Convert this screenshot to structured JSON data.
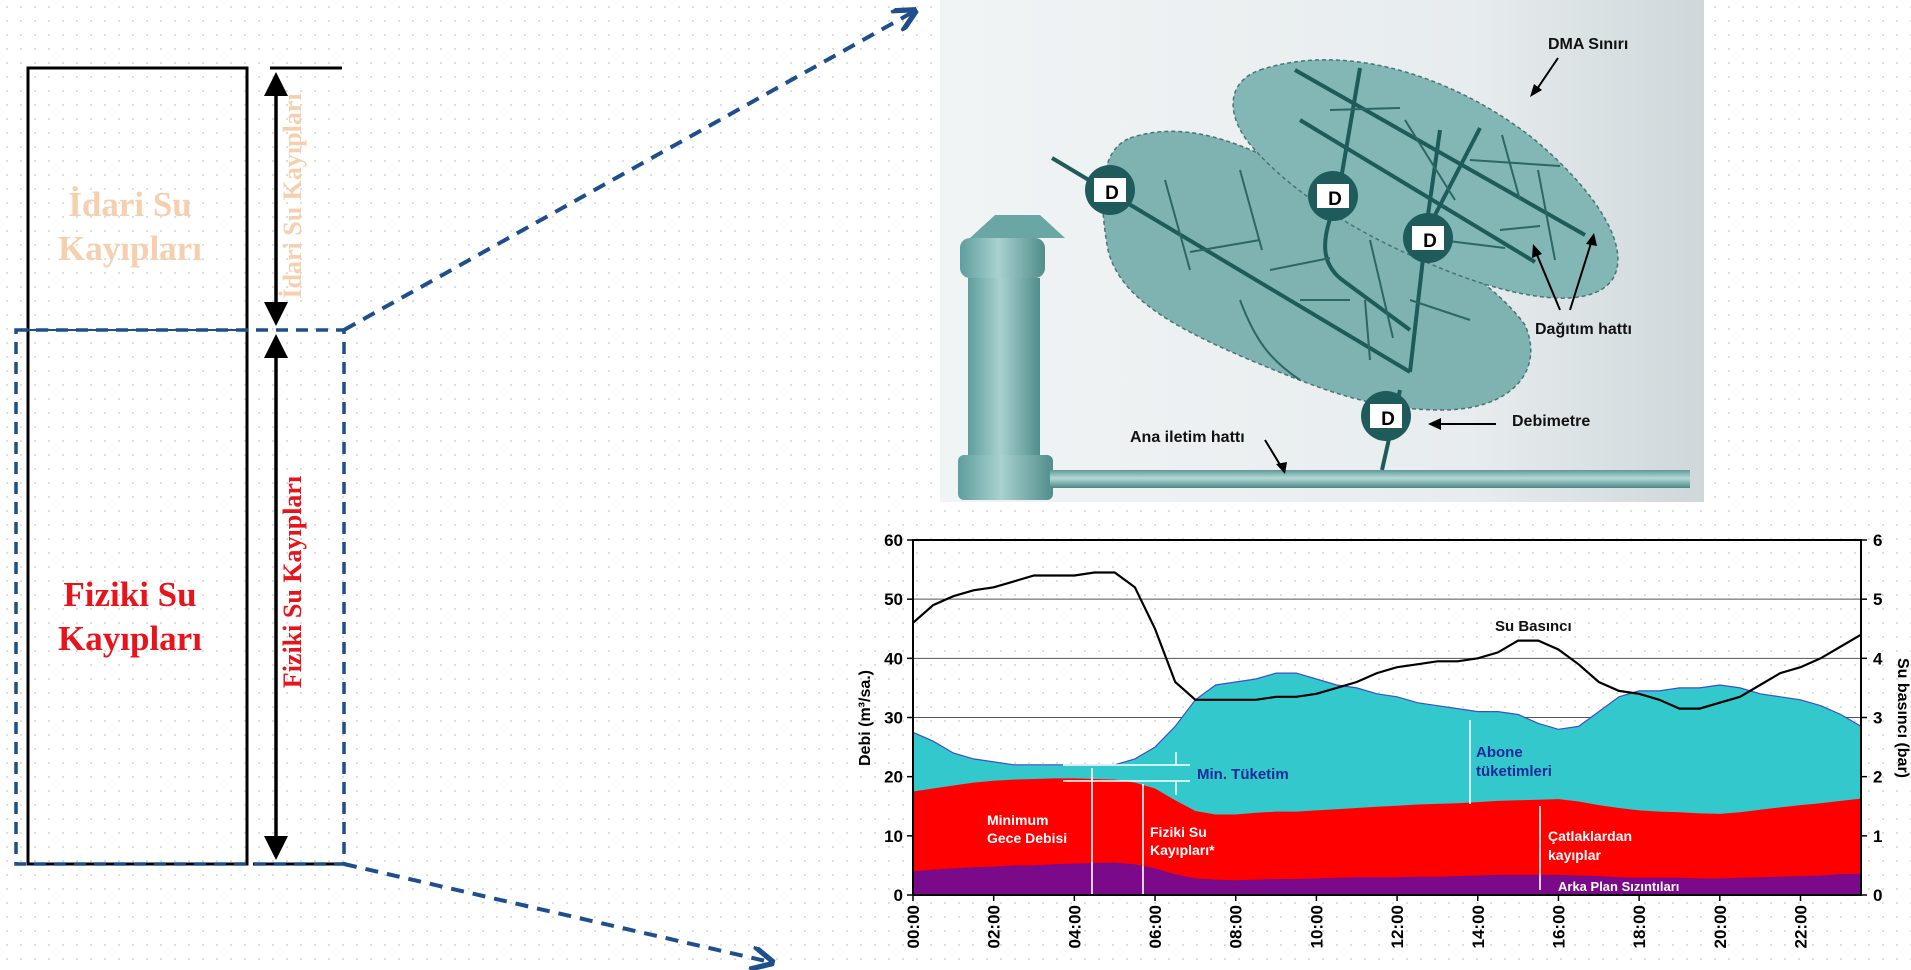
{
  "left": {
    "admin_box_label": [
      "İdari Su",
      "Kayıpları"
    ],
    "admin_arrow_label": "İdari Su Kayıpları",
    "physical_box_label": [
      "Fiziki Su",
      "Kayıpları"
    ],
    "physical_arrow_label": "Fiziki Su Kayıpları",
    "colors": {
      "admin": "#f5cfae",
      "physical": "#e8141c",
      "dash": "#1f4e8c"
    }
  },
  "dma": {
    "labels": {
      "boundary": "DMA Sınırı",
      "distribution": "Dağıtım hattı",
      "meter": "Debimetre",
      "trunk": "Ana iletim hattı"
    },
    "meter_symbol": "D",
    "colors": {
      "zone": "#7fb3b1",
      "pipe": "#1e5b5a",
      "bg": "#e9eef0"
    }
  },
  "chart_data": {
    "type": "area",
    "x": [
      "00:00",
      "00:30",
      "01:00",
      "01:30",
      "02:00",
      "02:30",
      "03:00",
      "03:30",
      "04:00",
      "04:30",
      "05:00",
      "05:30",
      "06:00",
      "06:30",
      "07:00",
      "07:30",
      "08:00",
      "08:30",
      "09:00",
      "09:30",
      "10:00",
      "10:30",
      "11:00",
      "11:30",
      "12:00",
      "12:30",
      "13:00",
      "13:30",
      "14:00",
      "14:30",
      "15:00",
      "15:30",
      "16:00",
      "16:30",
      "17:00",
      "17:30",
      "18:00",
      "18:30",
      "19:00",
      "19:30",
      "20:00",
      "20:30",
      "21:00",
      "21:30",
      "22:00",
      "22:30",
      "23:00",
      "23:30"
    ],
    "xticks": [
      "00:00",
      "02:00",
      "04:00",
      "06:00",
      "08:00",
      "10:00",
      "12:00",
      "14:00",
      "16:00",
      "18:00",
      "20:00",
      "22:00"
    ],
    "ylim": [
      0,
      60
    ],
    "yticks": [
      0,
      10,
      20,
      30,
      40,
      50,
      60
    ],
    "y2lim": [
      0,
      6
    ],
    "y2ticks": [
      0,
      1,
      2,
      3,
      4,
      5,
      6
    ],
    "ylabel": "Debi (m³/sa.)",
    "y2label": "Su basıncı (bar)",
    "series": [
      {
        "key": "background",
        "color": "#7a0a8a",
        "values": [
          4,
          4.3,
          4.5,
          4.7,
          4.8,
          5,
          5,
          5.2,
          5.3,
          5.4,
          5.5,
          5.2,
          4.5,
          3.5,
          2.8,
          2.6,
          2.5,
          2.6,
          2.7,
          2.7,
          2.8,
          2.9,
          3,
          3,
          3,
          3.1,
          3.1,
          3.2,
          3.3,
          3.4,
          3.4,
          3.4,
          3.4,
          3.3,
          3.2,
          3,
          2.9,
          2.9,
          2.9,
          2.8,
          2.8,
          2.9,
          3,
          3.1,
          3.2,
          3.3,
          3.5,
          3.6
        ]
      },
      {
        "key": "physical",
        "color": "#ff0000",
        "values": [
          17.5,
          18,
          18.5,
          19,
          19.3,
          19.5,
          19.6,
          19.7,
          19.7,
          19.6,
          19.5,
          19,
          18,
          16,
          14.2,
          13.6,
          13.6,
          13.9,
          14.1,
          14.1,
          14.3,
          14.5,
          14.7,
          14.9,
          15.1,
          15.3,
          15.4,
          15.5,
          15.7,
          15.9,
          16,
          16.1,
          16.2,
          15.8,
          15.2,
          14.7,
          14.3,
          14.1,
          14,
          13.8,
          13.7,
          14,
          14.4,
          14.8,
          15.2,
          15.5,
          15.9,
          16.3
        ]
      },
      {
        "key": "consumption",
        "color": "#33c8cc",
        "values": [
          27.5,
          26,
          24,
          23,
          22.5,
          22,
          22,
          22,
          22,
          22,
          22,
          23,
          25,
          28.5,
          33,
          35.5,
          36,
          36.5,
          37.5,
          37.5,
          36.5,
          35.5,
          35,
          34,
          33.5,
          32.5,
          32,
          31.5,
          31,
          31,
          30.5,
          29,
          28,
          28.5,
          31,
          33.5,
          34.5,
          34.5,
          35,
          35,
          35.5,
          35,
          34,
          33.5,
          33,
          32,
          30.5,
          28.5
        ]
      }
    ],
    "pressure": [
      4.6,
      4.9,
      5.05,
      5.15,
      5.2,
      5.3,
      5.4,
      5.4,
      5.4,
      5.45,
      5.45,
      5.2,
      4.5,
      3.6,
      3.3,
      3.3,
      3.3,
      3.3,
      3.35,
      3.35,
      3.4,
      3.5,
      3.6,
      3.75,
      3.85,
      3.9,
      3.95,
      3.95,
      4.0,
      4.1,
      4.3,
      4.3,
      4.15,
      3.9,
      3.6,
      3.45,
      3.4,
      3.3,
      3.15,
      3.15,
      3.25,
      3.35,
      3.55,
      3.75,
      3.85,
      4.0,
      4.2,
      4.4
    ],
    "pressure_color": "#000000",
    "annotations": {
      "pressure": "Su Basıncı",
      "min_consumption": "Min. Tüketim",
      "min_night_flow": [
        "Minimum",
        "Gece Debisi"
      ],
      "physical_losses": [
        "Fiziki Su",
        "Kayıpları*"
      ],
      "subscriber": [
        "Abone",
        "tüketimleri"
      ],
      "burst_losses": [
        "Çatlaklardan",
        "kayıplar"
      ],
      "background_leaks": "Arka Plan Sızıntıları"
    },
    "grid": true
  }
}
